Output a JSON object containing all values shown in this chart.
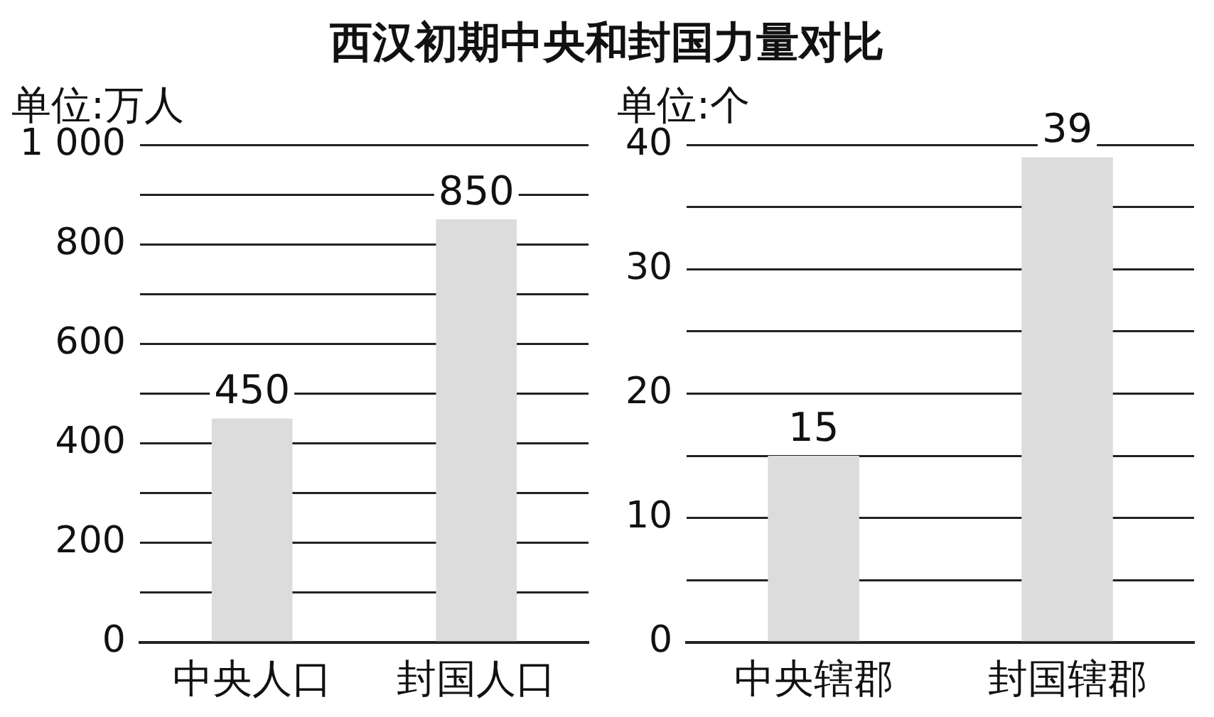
{
  "chart_data": [
    {
      "type": "bar",
      "title": "西汉初期中央和封国力量对比",
      "ylabel": "单位:万人",
      "categories": [
        "中央人口",
        "封国人口"
      ],
      "values": [
        450,
        850
      ],
      "color": "#dcdcdc",
      "ylim": [
        0,
        1000
      ],
      "yticks": [
        0,
        {
          "value": 100,
          "label": null
        },
        200,
        {
          "value": 300,
          "label": null
        },
        400,
        {
          "value": 500,
          "label": null
        },
        600,
        {
          "value": 700,
          "label": null
        },
        800,
        {
          "value": 900,
          "label": null
        },
        {
          "value": 1000,
          "label": "1 000"
        }
      ],
      "grid": "y",
      "data_labels": true
    },
    {
      "type": "bar",
      "ylabel": "单位:个",
      "categories": [
        "中央辖郡",
        "封国辖郡"
      ],
      "values": [
        15,
        39
      ],
      "color": "#dcdcdc",
      "ylim": [
        0,
        40
      ],
      "yticks": [
        0,
        {
          "value": 5,
          "label": null
        },
        10,
        {
          "value": 15,
          "label": null
        },
        20,
        {
          "value": 25,
          "label": null
        },
        30,
        {
          "value": 35,
          "label": null
        },
        40
      ],
      "grid": "y",
      "data_labels": true
    }
  ]
}
